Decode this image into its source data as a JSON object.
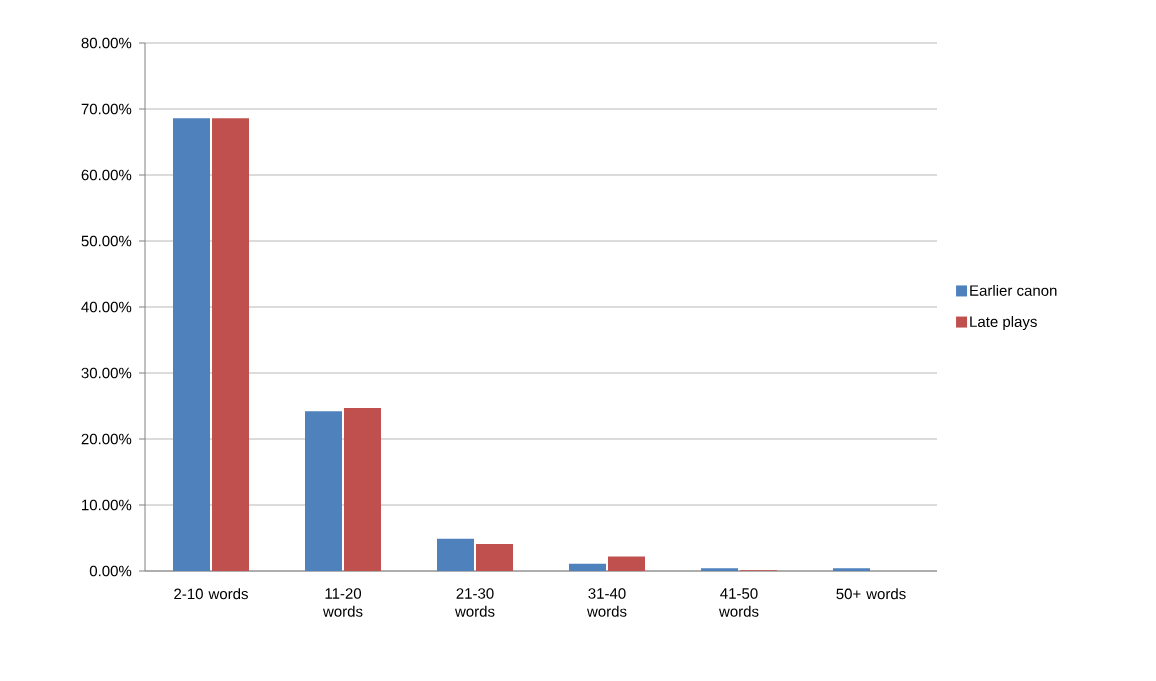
{
  "chart_data": {
    "type": "bar",
    "categories": [
      "2-10 words",
      "11-20 words",
      "21-30 words",
      "31-40 words",
      "41-50 words",
      "50+ words"
    ],
    "series": [
      {
        "name": "Earlier canon",
        "color": "#4f81bd",
        "values": [
          68.6,
          24.2,
          4.9,
          1.1,
          0.4,
          0.4
        ]
      },
      {
        "name": "Late plays",
        "color": "#c0504d",
        "values": [
          68.6,
          24.7,
          4.1,
          2.2,
          0.1,
          0
        ]
      }
    ],
    "ylim": [
      0,
      80
    ],
    "yticks": [
      {
        "value": 0,
        "label": "0.00%"
      },
      {
        "value": 10,
        "label": "10.00%"
      },
      {
        "value": 20,
        "label": "20.00%"
      },
      {
        "value": 30,
        "label": "30.00%"
      },
      {
        "value": 40,
        "label": "40.00%"
      },
      {
        "value": 50,
        "label": "50.00%"
      },
      {
        "value": 60,
        "label": "60.00%"
      },
      {
        "value": 70,
        "label": "70.00%"
      },
      {
        "value": 80,
        "label": "80.00%"
      }
    ],
    "grid": "y",
    "legend": "right"
  }
}
